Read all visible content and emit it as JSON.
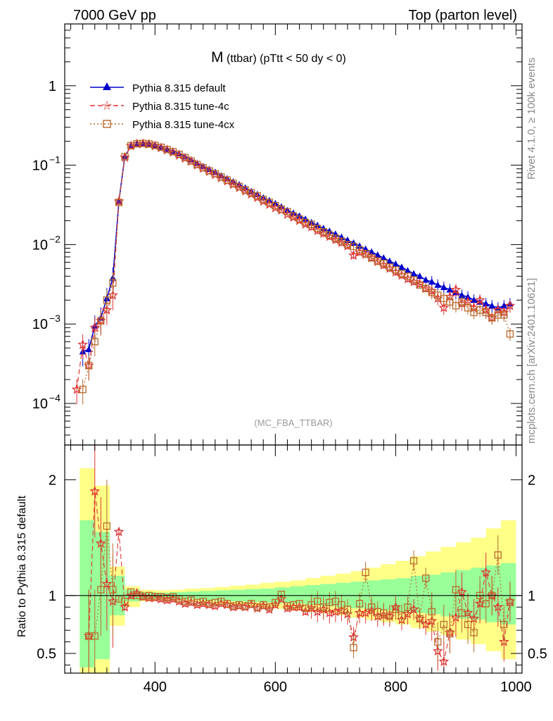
{
  "header": {
    "left": "7000 GeV pp",
    "right": "Top (parton level)"
  },
  "side_labels": {
    "rivet": "Rivet 4.1.0, ≥ 100k events",
    "mcplots": "mcplots.cern.ch [arXiv:2401.10621]"
  },
  "colors": {
    "default": "#0000cc",
    "tune4c": "#dd3333",
    "tune4cx": "#b86a2c",
    "band_inner": "#99ff99",
    "band_outer": "#ffff88"
  },
  "chart_data": [
    {
      "type": "line",
      "title": "M (ttbar) (pTtt < 50 dy < 0)",
      "title_main": "M",
      "title_sub": "(ttbar) (pTtt < 50 dy < 0)",
      "watermark": "(MC_FBA_TTBAR)",
      "xlabel": "",
      "ylabel": "",
      "yscale": "log",
      "xlim": [
        250,
        1010
      ],
      "ylim": [
        3e-05,
        6
      ],
      "y_ticks": [
        {
          "value": 0.0001,
          "label": "10",
          "exp": "−4"
        },
        {
          "value": 0.001,
          "label": "10",
          "exp": "−3"
        },
        {
          "value": 0.01,
          "label": "10",
          "exp": "−2"
        },
        {
          "value": 0.1,
          "label": "10",
          "exp": "−1"
        },
        {
          "value": 1,
          "label": "1",
          "exp": ""
        }
      ],
      "legend_position": "top-left",
      "x": [
        270,
        280,
        290,
        300,
        310,
        320,
        330,
        340,
        350,
        360,
        370,
        380,
        390,
        400,
        410,
        420,
        430,
        440,
        450,
        460,
        470,
        480,
        490,
        500,
        510,
        520,
        530,
        540,
        550,
        560,
        570,
        580,
        590,
        600,
        610,
        620,
        630,
        640,
        650,
        660,
        670,
        680,
        690,
        700,
        710,
        720,
        730,
        740,
        750,
        760,
        770,
        780,
        790,
        800,
        810,
        820,
        830,
        840,
        850,
        860,
        870,
        880,
        890,
        900,
        910,
        920,
        930,
        940,
        950,
        960,
        970,
        980,
        990
      ],
      "series": [
        {
          "name": "Pythia 8.315 default",
          "marker": "triangle",
          "values": [
            null,
            0.00045,
            0.00048,
            0.00095,
            0.0012,
            0.0021,
            0.0038,
            0.035,
            0.13,
            0.172,
            0.183,
            0.188,
            0.186,
            0.178,
            0.17,
            0.16,
            0.15,
            0.14,
            0.128,
            0.117,
            0.106,
            0.097,
            0.089,
            0.082,
            0.074,
            0.068,
            0.062,
            0.057,
            0.052,
            0.047,
            0.043,
            0.039,
            0.036,
            0.033,
            0.03,
            0.027,
            0.025,
            0.023,
            0.021,
            0.019,
            0.0175,
            0.016,
            0.0148,
            0.0136,
            0.0124,
            0.0114,
            0.0105,
            0.0096,
            0.0088,
            0.0081,
            0.0074,
            0.0068,
            0.0062,
            0.0057,
            0.0052,
            0.0047,
            0.0043,
            0.004,
            0.0036,
            0.0034,
            0.0031,
            0.0029,
            0.0027,
            0.0025,
            0.0023,
            0.0022,
            0.002,
            0.0019,
            0.0018,
            0.0017,
            0.0016,
            0.0017,
            0.0018
          ]
        },
        {
          "name": "Pythia 8.315 tune-4c",
          "marker": "star",
          "values": [
            0.00015,
            0.00055,
            0.0003,
            0.0009,
            0.0011,
            0.0015,
            0.0023,
            0.035,
            0.125,
            0.175,
            0.185,
            0.186,
            0.183,
            0.175,
            0.165,
            0.155,
            0.145,
            0.133,
            0.122,
            0.111,
            0.1,
            0.091,
            0.083,
            0.076,
            0.069,
            0.063,
            0.057,
            0.052,
            0.047,
            0.043,
            0.039,
            0.035,
            0.032,
            0.029,
            0.027,
            0.024,
            0.022,
            0.02,
            0.018,
            0.0167,
            0.015,
            0.0138,
            0.0126,
            0.0115,
            0.0106,
            0.0096,
            0.0073,
            0.008,
            0.0075,
            0.0068,
            0.0061,
            0.0055,
            0.005,
            0.0045,
            0.0041,
            0.0037,
            0.0034,
            0.0032,
            0.0028,
            0.0026,
            0.0021,
            0.0016,
            0.0022,
            0.0027,
            0.0018,
            0.0019,
            0.0016,
            0.002,
            0.0015,
            0.0012,
            0.0015,
            0.0014,
            0.0017
          ]
        },
        {
          "name": "Pythia 8.315 tune-4cx",
          "marker": "square",
          "values": [
            null,
            0.00015,
            0.0003,
            0.0006,
            0.0011,
            0.002,
            0.0033,
            0.034,
            0.128,
            0.176,
            0.186,
            0.188,
            0.185,
            0.177,
            0.168,
            0.158,
            0.148,
            0.137,
            0.125,
            0.113,
            0.102,
            0.093,
            0.085,
            0.078,
            0.071,
            0.065,
            0.059,
            0.054,
            0.049,
            0.045,
            0.041,
            0.037,
            0.034,
            0.031,
            0.028,
            0.026,
            0.023,
            0.021,
            0.019,
            0.018,
            0.016,
            0.0145,
            0.0132,
            0.012,
            0.011,
            0.01,
            0.0095,
            0.0086,
            0.0077,
            0.0068,
            0.0062,
            0.0058,
            0.0052,
            0.0048,
            0.0043,
            0.004,
            0.0036,
            0.0031,
            0.0028,
            0.0025,
            0.0023,
            0.0021,
            0.0019,
            0.0017,
            0.0019,
            0.0016,
            0.0014,
            0.0015,
            0.0014,
            0.0012,
            0.0013,
            0.0013,
            0.00075
          ]
        }
      ]
    },
    {
      "type": "line",
      "title": "",
      "ylabel": "Ratio to Pythia 8.315 default",
      "xlabel": "",
      "xlim": [
        250,
        1010
      ],
      "ylim": [
        0.33,
        2.3
      ],
      "x_ticks": [
        400,
        600,
        800,
        1000
      ],
      "y_ticks": [
        0.5,
        1,
        2
      ],
      "y_tick_labels": [
        "0.5",
        "1",
        "2"
      ],
      "reference_line": 1,
      "bands": {
        "x_edges": [
          275,
          300,
          325,
          350,
          375,
          400,
          425,
          450,
          475,
          500,
          525,
          550,
          575,
          600,
          625,
          650,
          675,
          700,
          725,
          750,
          775,
          800,
          825,
          850,
          875,
          900,
          925,
          950,
          975,
          1000
        ],
        "inner_low": [
          0.38,
          0.45,
          0.83,
          0.95,
          0.97,
          0.975,
          0.97,
          0.965,
          0.96,
          0.955,
          0.95,
          0.945,
          0.94,
          0.935,
          0.93,
          0.92,
          0.91,
          0.9,
          0.89,
          0.88,
          0.87,
          0.86,
          0.85,
          0.84,
          0.82,
          0.8,
          0.79,
          0.77,
          0.75
        ],
        "inner_high": [
          1.65,
          1.55,
          1.17,
          1.05,
          1.03,
          1.025,
          1.03,
          1.035,
          1.04,
          1.045,
          1.05,
          1.055,
          1.06,
          1.07,
          1.08,
          1.09,
          1.1,
          1.11,
          1.12,
          1.13,
          1.14,
          1.15,
          1.17,
          1.18,
          1.2,
          1.22,
          1.24,
          1.26,
          1.28
        ],
        "outer_low": [
          0.25,
          0.3,
          0.74,
          0.9,
          0.95,
          0.96,
          0.955,
          0.945,
          0.935,
          0.925,
          0.915,
          0.905,
          0.895,
          0.885,
          0.87,
          0.86,
          0.845,
          0.83,
          0.81,
          0.79,
          0.77,
          0.75,
          0.72,
          0.69,
          0.66,
          0.62,
          0.58,
          0.52,
          0.45
        ],
        "outer_high": [
          2.1,
          1.95,
          1.25,
          1.08,
          1.05,
          1.045,
          1.05,
          1.06,
          1.065,
          1.075,
          1.085,
          1.095,
          1.11,
          1.12,
          1.13,
          1.15,
          1.17,
          1.19,
          1.21,
          1.24,
          1.27,
          1.3,
          1.34,
          1.38,
          1.42,
          1.46,
          1.5,
          1.58,
          1.65
        ]
      },
      "x": [
        290,
        300,
        310,
        320,
        330,
        340,
        350,
        360,
        370,
        380,
        390,
        400,
        410,
        420,
        430,
        440,
        450,
        460,
        470,
        480,
        490,
        500,
        510,
        520,
        530,
        540,
        550,
        560,
        570,
        580,
        590,
        600,
        610,
        620,
        630,
        640,
        650,
        660,
        670,
        680,
        690,
        700,
        710,
        720,
        730,
        740,
        750,
        760,
        770,
        780,
        790,
        800,
        810,
        820,
        830,
        840,
        850,
        860,
        870,
        880,
        890,
        900,
        910,
        920,
        930,
        940,
        950,
        960,
        970,
        980,
        990
      ],
      "series": [
        {
          "name": "Pythia 8.315 tune-4c",
          "marker": "star",
          "values": [
            0.65,
            1.9,
            1.45,
            1.1,
            0.95,
            1.55,
            0.9,
            1.0,
            1.02,
            0.99,
            0.98,
            0.98,
            0.97,
            0.96,
            0.97,
            0.95,
            0.93,
            0.94,
            0.92,
            0.93,
            0.92,
            0.91,
            0.93,
            0.92,
            0.9,
            0.91,
            0.9,
            0.92,
            0.89,
            0.91,
            0.88,
            0.92,
            0.97,
            0.89,
            0.9,
            0.9,
            0.86,
            0.89,
            0.86,
            0.88,
            0.85,
            0.86,
            0.87,
            0.84,
            0.64,
            0.85,
            0.85,
            0.87,
            0.82,
            0.83,
            0.82,
            0.9,
            0.79,
            0.84,
            0.88,
            0.8,
            0.75,
            0.78,
            0.52,
            0.43,
            0.68,
            0.81,
            1.03,
            0.85,
            0.8,
            0.93,
            1.2,
            1.0,
            0.9,
            0.6,
            0.95
          ]
        },
        {
          "name": "Pythia 8.315 tune-4cx",
          "marker": "square",
          "values": [
            0.65,
            0.65,
            1.05,
            1.6,
            1.05,
            0.97,
            0.95,
            1.03,
            1.0,
            0.99,
            1.0,
            0.99,
            0.99,
            0.98,
            0.99,
            0.97,
            0.95,
            0.96,
            0.94,
            0.95,
            0.93,
            0.94,
            0.95,
            0.93,
            0.91,
            0.92,
            0.91,
            0.93,
            0.9,
            0.92,
            0.9,
            0.94,
            1.01,
            0.91,
            0.92,
            0.93,
            0.89,
            0.92,
            0.95,
            0.9,
            0.94,
            0.95,
            0.92,
            0.88,
            0.55,
            0.93,
            1.2,
            0.9,
            0.86,
            0.85,
            0.83,
            0.88,
            0.83,
            0.9,
            1.3,
            0.8,
            1.15,
            0.86,
            0.6,
            0.75,
            0.67,
            1.05,
            0.85,
            0.75,
            0.68,
            1.0,
            0.93,
            1.0,
            1.35,
            0.75,
            0.94
          ]
        }
      ]
    }
  ]
}
